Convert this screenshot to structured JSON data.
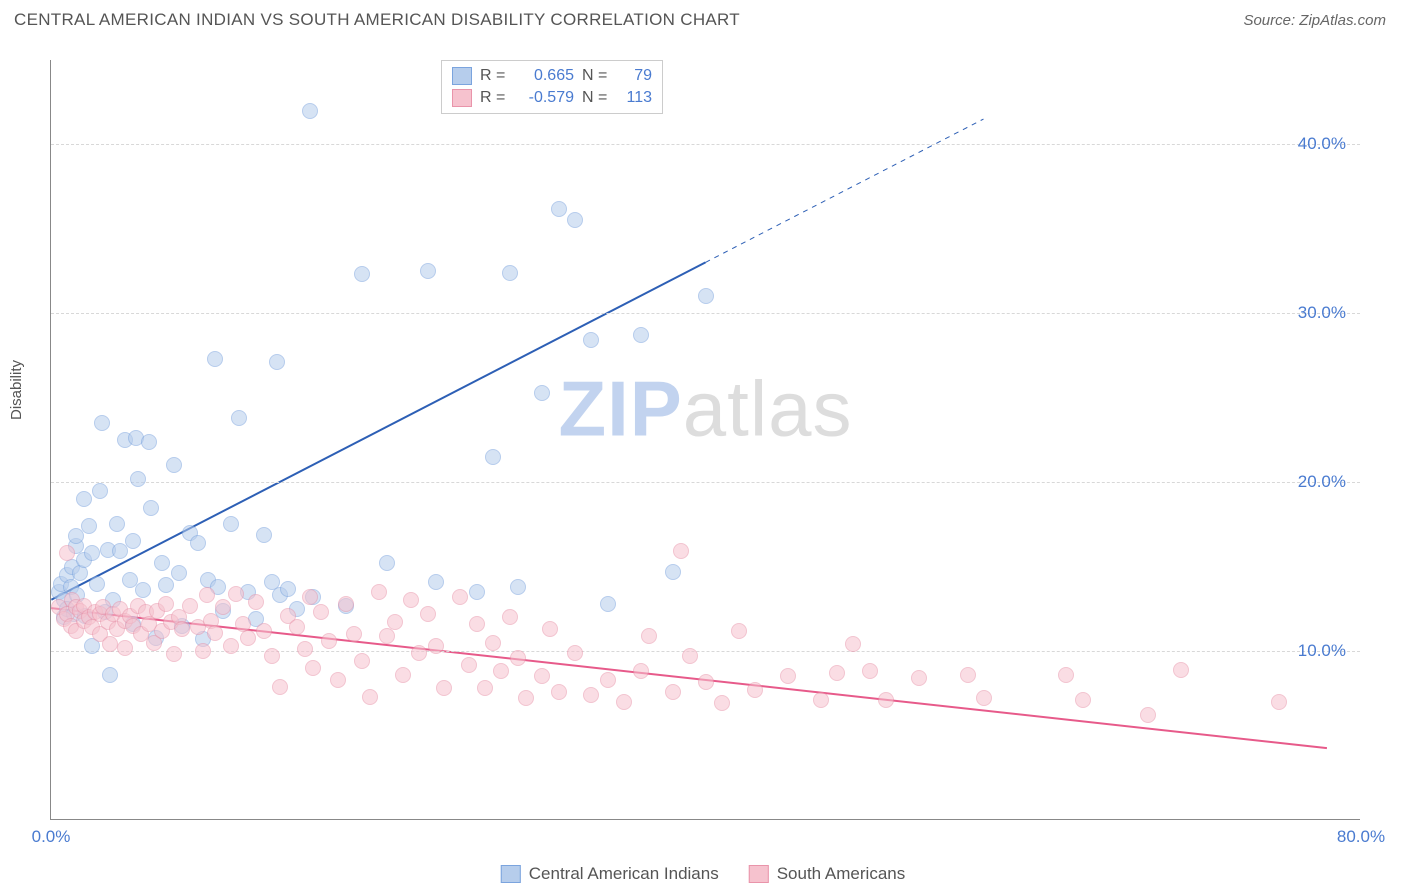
{
  "title": "CENTRAL AMERICAN INDIAN VS SOUTH AMERICAN DISABILITY CORRELATION CHART",
  "source": "Source: ZipAtlas.com",
  "ylabel": "Disability",
  "watermark_a": "ZIP",
  "watermark_b": "atlas",
  "chart": {
    "type": "scatter",
    "xlim": [
      0,
      80
    ],
    "ylim": [
      0,
      45
    ],
    "x_ticks": [
      {
        "v": 0,
        "label": "0.0%"
      },
      {
        "v": 80,
        "label": "80.0%"
      }
    ],
    "y_ticks": [
      {
        "v": 10,
        "label": "10.0%"
      },
      {
        "v": 20,
        "label": "20.0%"
      },
      {
        "v": 30,
        "label": "30.0%"
      },
      {
        "v": 40,
        "label": "40.0%"
      }
    ],
    "grid_color": "#d8d8d8",
    "background_color": "#ffffff",
    "marker_radius": 8,
    "marker_stroke_width": 1.5,
    "series": [
      {
        "name": "Central American Indians",
        "label": "Central American Indians",
        "fill_color": "#b6cdec",
        "stroke_color": "#7ba4de",
        "fill_opacity": 0.55,
        "R": "0.665",
        "N": "79",
        "trend": {
          "x1": 0,
          "y1": 13,
          "x2": 40,
          "y2": 33,
          "x2_ext": 57,
          "y2_ext": 41.5,
          "color": "#2d5fb5",
          "width": 2,
          "dash_ext": "5,5"
        },
        "points": [
          [
            0.5,
            13.5
          ],
          [
            0.6,
            14
          ],
          [
            0.8,
            12
          ],
          [
            0.8,
            13
          ],
          [
            1,
            14.5
          ],
          [
            1,
            12.5
          ],
          [
            1.2,
            13.8
          ],
          [
            1.3,
            15
          ],
          [
            1.4,
            12.2
          ],
          [
            1.5,
            16.2
          ],
          [
            1.5,
            16.8
          ],
          [
            1.6,
            13.3
          ],
          [
            1.8,
            14.6
          ],
          [
            2,
            19
          ],
          [
            2,
            15.4
          ],
          [
            2.1,
            12.1
          ],
          [
            2.3,
            17.4
          ],
          [
            2.5,
            15.8
          ],
          [
            2.5,
            10.3
          ],
          [
            2.8,
            14
          ],
          [
            3,
            19.5
          ],
          [
            3.1,
            23.5
          ],
          [
            3.3,
            12.3
          ],
          [
            3.5,
            16
          ],
          [
            3.6,
            8.6
          ],
          [
            3.8,
            13
          ],
          [
            4,
            17.5
          ],
          [
            4.2,
            15.9
          ],
          [
            4.5,
            22.5
          ],
          [
            4.8,
            14.2
          ],
          [
            5,
            16.5
          ],
          [
            5,
            11.6
          ],
          [
            5.2,
            22.6
          ],
          [
            5.3,
            20.2
          ],
          [
            5.6,
            13.6
          ],
          [
            6,
            22.4
          ],
          [
            6.1,
            18.5
          ],
          [
            6.4,
            10.8
          ],
          [
            6.8,
            15.2
          ],
          [
            7,
            13.9
          ],
          [
            7.5,
            21
          ],
          [
            7.8,
            14.6
          ],
          [
            8,
            11.5
          ],
          [
            8.5,
            17
          ],
          [
            9,
            16.4
          ],
          [
            9.3,
            10.7
          ],
          [
            9.6,
            14.2
          ],
          [
            10,
            27.3
          ],
          [
            10.2,
            13.8
          ],
          [
            10.5,
            12.4
          ],
          [
            11,
            17.5
          ],
          [
            11.5,
            23.8
          ],
          [
            12,
            13.5
          ],
          [
            12.5,
            11.9
          ],
          [
            13,
            16.9
          ],
          [
            13.5,
            14.1
          ],
          [
            13.8,
            27.1
          ],
          [
            14,
            13.3
          ],
          [
            14.5,
            13.7
          ],
          [
            15,
            12.5
          ],
          [
            15.8,
            42
          ],
          [
            16,
            13.2
          ],
          [
            18,
            12.7
          ],
          [
            19,
            32.3
          ],
          [
            20.5,
            15.2
          ],
          [
            23,
            32.5
          ],
          [
            23.5,
            14.1
          ],
          [
            26,
            13.5
          ],
          [
            27,
            21.5
          ],
          [
            28,
            32.4
          ],
          [
            28.5,
            13.8
          ],
          [
            30,
            25.3
          ],
          [
            31,
            36.2
          ],
          [
            32,
            35.5
          ],
          [
            33,
            28.4
          ],
          [
            34,
            12.8
          ],
          [
            36,
            28.7
          ],
          [
            38,
            14.7
          ],
          [
            40,
            31
          ]
        ]
      },
      {
        "name": "South Americans",
        "label": "South Americans",
        "fill_color": "#f6c2ce",
        "stroke_color": "#e994aa",
        "fill_opacity": 0.55,
        "R": "-0.579",
        "N": "113",
        "trend": {
          "x1": 0,
          "y1": 12.5,
          "x2": 78,
          "y2": 4.2,
          "color": "#e75a8a",
          "width": 2
        },
        "points": [
          [
            0.5,
            12.6
          ],
          [
            0.8,
            11.9
          ],
          [
            1,
            12.2
          ],
          [
            1,
            15.8
          ],
          [
            1.2,
            11.5
          ],
          [
            1.3,
            13
          ],
          [
            1.5,
            12.6
          ],
          [
            1.5,
            11.2
          ],
          [
            1.8,
            12.4
          ],
          [
            2,
            11.8
          ],
          [
            2,
            12.7
          ],
          [
            2.3,
            12
          ],
          [
            2.5,
            11.4
          ],
          [
            2.7,
            12.3
          ],
          [
            3,
            12.2
          ],
          [
            3,
            11
          ],
          [
            3.2,
            12.6
          ],
          [
            3.5,
            11.7
          ],
          [
            3.6,
            10.4
          ],
          [
            3.8,
            12.2
          ],
          [
            4,
            11.3
          ],
          [
            4.2,
            12.5
          ],
          [
            4.5,
            11.8
          ],
          [
            4.5,
            10.2
          ],
          [
            4.8,
            12.1
          ],
          [
            5,
            11.5
          ],
          [
            5.3,
            12.7
          ],
          [
            5.5,
            11
          ],
          [
            5.8,
            12.3
          ],
          [
            6,
            11.6
          ],
          [
            6.3,
            10.5
          ],
          [
            6.5,
            12.4
          ],
          [
            6.8,
            11.2
          ],
          [
            7,
            12.8
          ],
          [
            7.3,
            11.7
          ],
          [
            7.5,
            9.8
          ],
          [
            7.8,
            12
          ],
          [
            8,
            11.3
          ],
          [
            8.5,
            12.7
          ],
          [
            9,
            11.4
          ],
          [
            9.3,
            10
          ],
          [
            9.5,
            13.3
          ],
          [
            9.8,
            11.8
          ],
          [
            10,
            11.1
          ],
          [
            10.5,
            12.6
          ],
          [
            11,
            10.3
          ],
          [
            11.3,
            13.4
          ],
          [
            11.7,
            11.6
          ],
          [
            12,
            10.8
          ],
          [
            12.5,
            12.9
          ],
          [
            13,
            11.2
          ],
          [
            13.5,
            9.7
          ],
          [
            14,
            7.9
          ],
          [
            14.5,
            12.1
          ],
          [
            15,
            11.4
          ],
          [
            15.5,
            10.1
          ],
          [
            15.8,
            13.2
          ],
          [
            16,
            9
          ],
          [
            16.5,
            12.3
          ],
          [
            17,
            10.6
          ],
          [
            17.5,
            8.3
          ],
          [
            18,
            12.8
          ],
          [
            18.5,
            11
          ],
          [
            19,
            9.4
          ],
          [
            19.5,
            7.3
          ],
          [
            20,
            13.5
          ],
          [
            20.5,
            10.9
          ],
          [
            21,
            11.7
          ],
          [
            21.5,
            8.6
          ],
          [
            22,
            13
          ],
          [
            22.5,
            9.9
          ],
          [
            23,
            12.2
          ],
          [
            23.5,
            10.3
          ],
          [
            24,
            7.8
          ],
          [
            25,
            13.2
          ],
          [
            25.5,
            9.2
          ],
          [
            26,
            11.6
          ],
          [
            26.5,
            7.8
          ],
          [
            27,
            10.5
          ],
          [
            27.5,
            8.8
          ],
          [
            28,
            12
          ],
          [
            28.5,
            9.6
          ],
          [
            29,
            7.2
          ],
          [
            30,
            8.5
          ],
          [
            30.5,
            11.3
          ],
          [
            31,
            7.6
          ],
          [
            32,
            9.9
          ],
          [
            33,
            7.4
          ],
          [
            34,
            8.3
          ],
          [
            35,
            7
          ],
          [
            36,
            8.8
          ],
          [
            36.5,
            10.9
          ],
          [
            38,
            7.6
          ],
          [
            38.5,
            15.9
          ],
          [
            39,
            9.7
          ],
          [
            40,
            8.2
          ],
          [
            41,
            6.9
          ],
          [
            42,
            11.2
          ],
          [
            43,
            7.7
          ],
          [
            45,
            8.5
          ],
          [
            47,
            7.1
          ],
          [
            48,
            8.7
          ],
          [
            49,
            10.4
          ],
          [
            50,
            8.8
          ],
          [
            51,
            7.1
          ],
          [
            53,
            8.4
          ],
          [
            56,
            8.6
          ],
          [
            57,
            7.2
          ],
          [
            62,
            8.6
          ],
          [
            63,
            7.1
          ],
          [
            67,
            6.2
          ],
          [
            69,
            8.9
          ],
          [
            75,
            7.0
          ]
        ]
      }
    ]
  },
  "legend": [
    {
      "label": "Central American Indians",
      "fill": "#b6cdec",
      "stroke": "#7ba4de"
    },
    {
      "label": "South Americans",
      "fill": "#f6c2ce",
      "stroke": "#e994aa"
    }
  ]
}
